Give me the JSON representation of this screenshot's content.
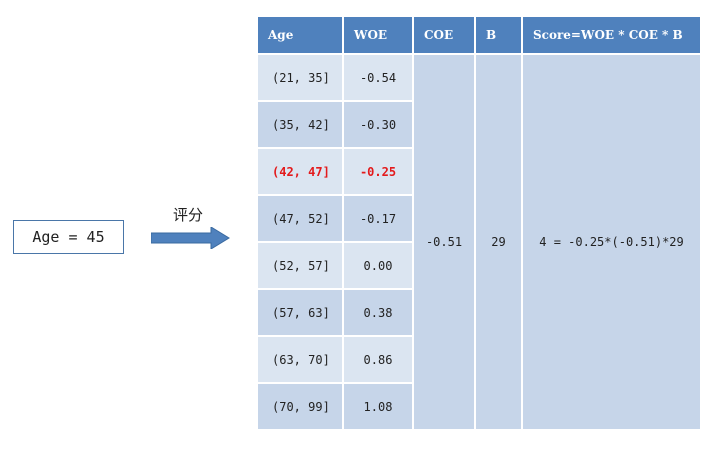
{
  "input": {
    "text": "Age = 45"
  },
  "arrow": {
    "label": "评分",
    "color": "#4f81bd"
  },
  "table": {
    "headers": [
      "Age",
      "WOE",
      "COE",
      "B",
      "Score=WOE * COE * B"
    ],
    "rows": [
      {
        "age": "(21, 35]",
        "woe": "-0.54",
        "highlight": false
      },
      {
        "age": "(35, 42]",
        "woe": "-0.30",
        "highlight": false
      },
      {
        "age": "(42, 47]",
        "woe": "-0.25",
        "highlight": true
      },
      {
        "age": "(47, 52]",
        "woe": "-0.17",
        "highlight": false
      },
      {
        "age": "(52, 57]",
        "woe": "0.00",
        "highlight": false
      },
      {
        "age": "(57, 63]",
        "woe": "0.38",
        "highlight": false
      },
      {
        "age": "(63, 70]",
        "woe": "0.86",
        "highlight": false
      },
      {
        "age": "(70, 99]",
        "woe": "1.08",
        "highlight": false
      }
    ],
    "coe": "-0.51",
    "b": "29",
    "score": "4 = -0.25*(-0.51)*29",
    "colors": {
      "header": "#4f81bd",
      "row_light": "#dbe5f1",
      "row_dark": "#c6d5e9",
      "highlight": "#e31a1c"
    }
  }
}
